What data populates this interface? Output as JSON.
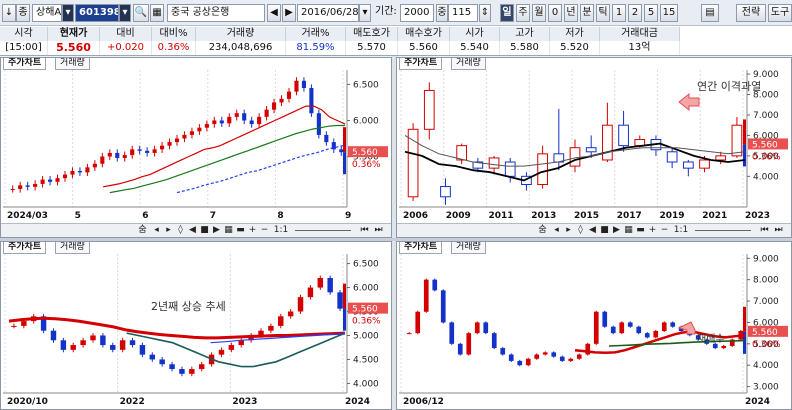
{
  "toolbar": {
    "arrow_label": "↓",
    "market_label": "종",
    "exchange_select": "상해A",
    "code_value": "601398",
    "search_icon": "search-icon",
    "stock_name": "중국 공상은행",
    "date_value": "2016/06/28",
    "period_label": "기간:",
    "period_value": "2000",
    "count_prefix": "중",
    "count_value": "115",
    "period_buttons": [
      "일",
      "주",
      "월",
      "0",
      "년",
      "분",
      "틱",
      "1",
      "2",
      "5",
      "15"
    ],
    "strategy_label": "전략",
    "tools_label": "도구"
  },
  "quote": {
    "headers": [
      "시각",
      "현재가",
      "대비",
      "대비%",
      "거래량",
      "거래%",
      "매도호가",
      "매수호가",
      "시가",
      "고가",
      "저가",
      "거래대금"
    ],
    "values": [
      "[15:00]",
      "5.560",
      "+0.020",
      "0.36%",
      "234,048,696",
      "81.59%",
      "5.570",
      "5.560",
      "5.540",
      "5.580",
      "5.520",
      "13억"
    ]
  },
  "panels": {
    "tab_price": "주가차트",
    "tab_volume": "거래량",
    "scroll_labels": [
      "숨",
      "1:1"
    ]
  },
  "chart_data": [
    {
      "type": "candlestick",
      "title": "",
      "x_ticks": [
        "2024/03",
        "5",
        "6",
        "7",
        "8",
        "9"
      ],
      "y_ticks": [
        6.5,
        6.0,
        5.5
      ],
      "ylim": [
        4.8,
        6.7
      ],
      "last_price": "5.560",
      "last_change": "0.36%",
      "close": [
        5.05,
        5.1,
        5.08,
        5.12,
        5.18,
        5.15,
        5.2,
        5.25,
        5.3,
        5.28,
        5.35,
        5.4,
        5.5,
        5.55,
        5.48,
        5.52,
        5.6,
        5.58,
        5.55,
        5.6,
        5.65,
        5.7,
        5.75,
        5.8,
        5.85,
        5.9,
        5.95,
        6.0,
        5.96,
        6.05,
        6.1,
        6.0,
        5.95,
        6.05,
        6.15,
        6.25,
        6.3,
        6.4,
        6.55,
        6.45,
        6.1,
        5.8,
        5.7,
        5.6,
        5.56
      ],
      "ma": [
        {
          "color": "#d40000",
          "values": [
            5.08,
            5.1,
            5.12,
            5.15,
            5.18,
            5.22,
            5.25,
            5.3,
            5.35,
            5.4,
            5.45,
            5.5,
            5.55,
            5.6,
            5.62,
            5.65,
            5.7,
            5.75,
            5.8,
            5.85,
            5.9,
            5.95,
            6.0,
            6.05,
            6.1,
            6.15,
            6.2,
            6.2,
            6.15,
            6.05,
            6.0,
            5.95
          ]
        },
        {
          "color": "#1a7a1a",
          "values": [
            5.0,
            5.02,
            5.04,
            5.06,
            5.09,
            5.12,
            5.15,
            5.18,
            5.22,
            5.26,
            5.3,
            5.34,
            5.38,
            5.42,
            5.46,
            5.5,
            5.54,
            5.58,
            5.62,
            5.66,
            5.7,
            5.74,
            5.78,
            5.82,
            5.85,
            5.88,
            5.9,
            5.92,
            5.93,
            5.93
          ]
        },
        {
          "color": "#1e40ff",
          "values": [
            5.0,
            5.03,
            5.06,
            5.1,
            5.13,
            5.16,
            5.2,
            5.24,
            5.28,
            5.3,
            5.34,
            5.38,
            5.42,
            5.46,
            5.5,
            5.53,
            5.56,
            5.6,
            5.63,
            5.66
          ]
        }
      ]
    },
    {
      "type": "candlestick",
      "title": "",
      "x_ticks": [
        "2006",
        "2009",
        "2011",
        "2013",
        "2015",
        "2017",
        "2019",
        "2021",
        "2023"
      ],
      "y_ticks": [
        9.0,
        8.0,
        7.0,
        6.0,
        5.0,
        4.0
      ],
      "ylim": [
        2.5,
        9.2
      ],
      "last_price": "5.560",
      "last_change": "0.36%",
      "annotation": "연간 이격과열",
      "candles": [
        [
          3.0,
          6.3,
          2.8,
          6.6
        ],
        [
          6.3,
          8.2,
          5.8,
          8.6
        ],
        [
          3.5,
          3.0,
          2.6,
          3.9
        ],
        [
          4.8,
          5.5,
          4.6,
          5.6
        ],
        [
          4.7,
          4.4,
          4.2,
          4.9
        ],
        [
          4.4,
          4.9,
          4.1,
          5.0
        ],
        [
          4.7,
          4.0,
          3.7,
          4.9
        ],
        [
          4.0,
          3.6,
          3.3,
          4.2
        ],
        [
          3.6,
          5.1,
          3.4,
          5.5
        ],
        [
          5.1,
          4.7,
          4.3,
          7.3
        ],
        [
          4.5,
          5.4,
          4.2,
          5.8
        ],
        [
          5.4,
          5.2,
          4.9,
          6.0
        ],
        [
          4.8,
          6.5,
          4.7,
          7.6
        ],
        [
          6.5,
          5.5,
          5.2,
          7.2
        ],
        [
          5.5,
          5.8,
          5.4,
          6.0
        ],
        [
          5.8,
          5.3,
          5.0,
          6.0
        ],
        [
          5.2,
          4.7,
          4.4,
          5.4
        ],
        [
          4.7,
          4.4,
          4.0,
          4.8
        ],
        [
          4.4,
          4.8,
          4.2,
          5.0
        ],
        [
          4.8,
          5.0,
          4.6,
          5.2
        ],
        [
          5.0,
          6.5,
          4.9,
          6.9
        ]
      ],
      "ma": [
        {
          "color": "#000000",
          "values": [
            5.2,
            5.0,
            4.6,
            4.5,
            4.3,
            4.2,
            4.0,
            3.8,
            4.2,
            4.4,
            4.8,
            5.0,
            5.2,
            5.4,
            5.5,
            5.6,
            5.3,
            5.0,
            4.8,
            4.7,
            4.8
          ]
        },
        {
          "color": "#555555",
          "values": [
            6.0,
            5.5,
            5.1,
            4.9,
            4.7,
            4.6,
            4.5,
            4.5,
            4.6,
            4.7,
            4.9,
            5.0,
            5.2,
            5.3,
            5.4,
            5.4,
            5.4,
            5.3,
            5.2,
            5.1,
            5.2
          ]
        }
      ]
    },
    {
      "type": "candlestick",
      "title": "",
      "x_ticks": [
        "2020/10",
        "2022",
        "2023",
        "2024"
      ],
      "y_ticks": [
        6.5,
        6.0,
        5.5,
        5.0,
        4.5,
        4.0
      ],
      "ylim": [
        3.8,
        6.7
      ],
      "last_price": "5.560",
      "last_change": "0.36%",
      "annotation": "2년째 상승 추세",
      "close": [
        5.2,
        5.3,
        5.4,
        5.1,
        4.9,
        4.7,
        4.8,
        4.9,
        5.0,
        4.8,
        4.7,
        4.9,
        4.8,
        4.6,
        4.5,
        4.4,
        4.3,
        4.2,
        4.3,
        4.4,
        4.6,
        4.7,
        4.8,
        4.9,
        5.0,
        5.1,
        5.2,
        5.4,
        5.5,
        5.8,
        6.0,
        6.2,
        5.9,
        5.56
      ],
      "ma": [
        {
          "color": "#d40000",
          "values": [
            5.3,
            5.33,
            5.35,
            5.36,
            5.35,
            5.33,
            5.3,
            5.26,
            5.22,
            5.18,
            5.12,
            5.08,
            5.05,
            5.02,
            5.0,
            4.98,
            4.96,
            4.95,
            4.95,
            4.96,
            4.97,
            4.98,
            4.99,
            5.0,
            5.0,
            5.01,
            5.02,
            5.03,
            5.04,
            5.05
          ]
        },
        {
          "color": "#1a5c5c",
          "values": [
            5.05,
            5.0,
            4.95,
            4.9,
            4.85,
            4.75,
            4.65,
            4.55,
            4.45,
            4.4,
            4.35,
            4.35,
            4.4,
            4.45,
            4.55,
            4.65,
            4.75,
            4.85,
            4.95,
            5.05
          ]
        },
        {
          "color": "#1e40ff",
          "values": [
            4.85,
            4.87,
            4.9,
            4.92,
            4.94,
            4.96,
            4.98,
            5.0,
            5.02,
            5.04
          ]
        }
      ]
    },
    {
      "type": "candlestick",
      "title": "",
      "x_ticks": [
        "2006/12",
        "2024"
      ],
      "y_ticks": [
        9.0,
        8.0,
        7.0,
        6.0,
        5.0,
        4.0,
        3.0
      ],
      "ylim": [
        2.7,
        9.2
      ],
      "last_price": "5.560",
      "last_change": "0.36%",
      "annotation": "재배수",
      "close": [
        5.5,
        6.5,
        8.0,
        7.5,
        6.0,
        5.0,
        4.5,
        5.5,
        6.0,
        5.5,
        4.8,
        4.5,
        4.2,
        4.0,
        4.3,
        4.5,
        4.6,
        4.4,
        4.2,
        4.3,
        4.5,
        5.0,
        6.5,
        5.8,
        5.5,
        6.0,
        5.8,
        5.5,
        5.3,
        5.6,
        6.0,
        5.8,
        5.6,
        5.4,
        5.2,
        5.0,
        4.8,
        4.9,
        5.2,
        5.6
      ],
      "ma": [
        {
          "color": "#d40000",
          "values": [
            4.7,
            4.65,
            4.6,
            4.58,
            4.6,
            4.7,
            4.85,
            5.0,
            5.15,
            5.3,
            5.45,
            5.55,
            5.55,
            5.45,
            5.35,
            5.3,
            5.35,
            5.4
          ]
        },
        {
          "color": "#1a5c1a",
          "values": [
            4.9,
            4.92,
            4.95,
            4.98,
            5.0,
            5.02,
            5.05,
            5.08,
            5.1,
            5.12,
            5.13,
            5.15
          ]
        }
      ]
    }
  ],
  "colors": {
    "up": "#d40000",
    "down": "#1232c8",
    "accent": "#1d3f8f"
  }
}
